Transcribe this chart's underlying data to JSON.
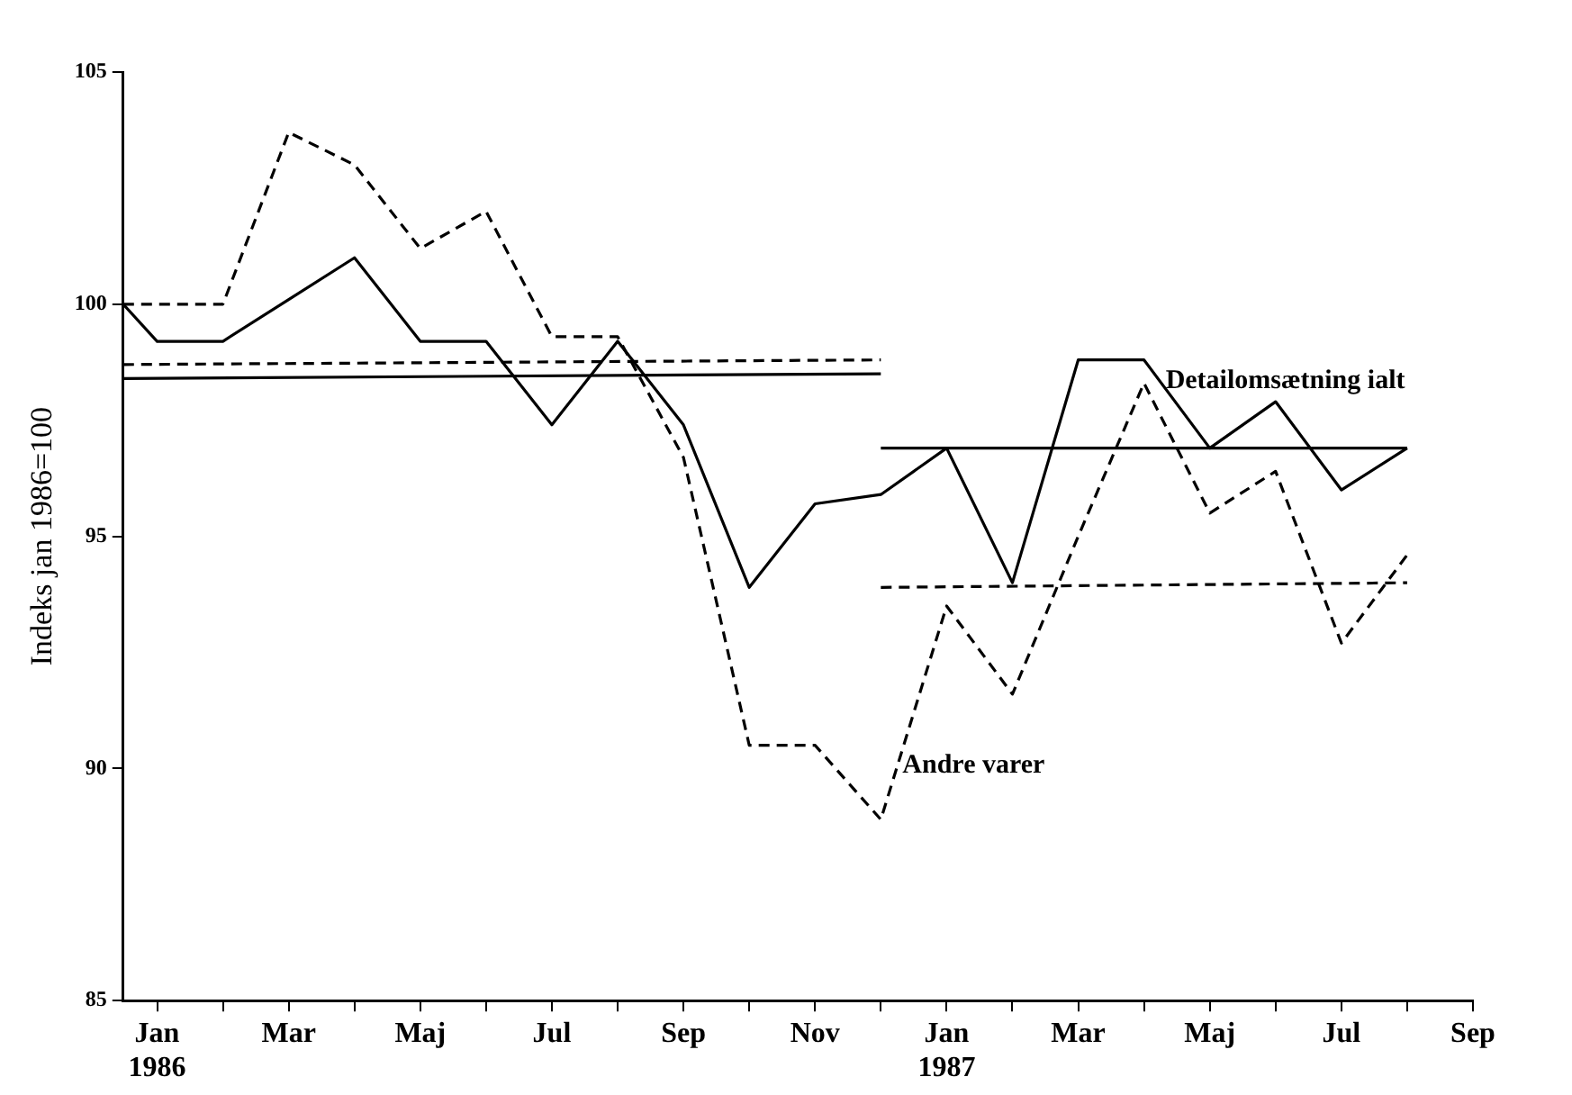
{
  "chart_data": {
    "type": "line",
    "ylabel": "Indeks jan 1986=100",
    "xlim": [
      "1985-12-16",
      "1987-09"
    ],
    "ylim": [
      85,
      105
    ],
    "yticks": [
      85,
      90,
      95,
      100,
      105
    ],
    "xticks": [
      {
        "value": "1986-01",
        "label": "Jan 1986"
      },
      {
        "value": "1986-02",
        "label": null
      },
      {
        "value": "1986-03",
        "label": "Mar"
      },
      {
        "value": "1986-04",
        "label": null
      },
      {
        "value": "1986-05",
        "label": "Maj"
      },
      {
        "value": "1986-06",
        "label": null
      },
      {
        "value": "1986-07",
        "label": "Jul"
      },
      {
        "value": "1986-08",
        "label": null
      },
      {
        "value": "1986-09",
        "label": "Sep"
      },
      {
        "value": "1986-10",
        "label": null
      },
      {
        "value": "1986-11",
        "label": "Nov"
      },
      {
        "value": "1986-12",
        "label": null
      },
      {
        "value": "1987-01",
        "label": "Jan 1987"
      },
      {
        "value": "1987-02",
        "label": null
      },
      {
        "value": "1987-03",
        "label": "Mar"
      },
      {
        "value": "1987-04",
        "label": null
      },
      {
        "value": "1987-05",
        "label": "Maj"
      },
      {
        "value": "1987-06",
        "label": null
      },
      {
        "value": "1987-07",
        "label": "Jul"
      },
      {
        "value": "1987-08",
        "label": null
      },
      {
        "value": "1987-09",
        "label": "Sep"
      }
    ],
    "x": [
      "1985-12-16",
      "1986-01",
      "1986-02",
      "1986-03",
      "1986-04",
      "1986-05",
      "1986-06",
      "1986-07",
      "1986-08",
      "1986-09",
      "1986-10",
      "1986-11",
      "1986-12",
      "1987-01",
      "1987-02",
      "1987-03",
      "1987-04",
      "1987-05",
      "1987-06",
      "1987-07",
      "1987-08"
    ],
    "grid": false,
    "legend": false,
    "marker": "none",
    "series": [
      {
        "name": "Detailomsætning ialt",
        "color": "#000000",
        "line_style": "solid",
        "values": [
          100,
          99.2,
          99.2,
          100.1,
          101,
          99.2,
          99.2,
          97.4,
          99.2,
          97.4,
          93.9,
          95.7,
          95.9,
          96.9,
          94,
          98.8,
          98.8,
          96.9,
          97.9,
          96,
          96.9
        ]
      },
      {
        "name": "Andre varer",
        "color": "#000000",
        "line_style": "dashed",
        "values": [
          100,
          100,
          100,
          103.7,
          103,
          101.2,
          102,
          99.3,
          99.3,
          96.7,
          90.5,
          90.5,
          88.9,
          93.5,
          91.6,
          95,
          98.3,
          95.5,
          96.4,
          92.7,
          94.6
        ]
      },
      {
        "color": "#000000",
        "line_style": "solid",
        "x": [
          "1985-12-16",
          "1986-12"
        ],
        "values": [
          98.4,
          98.5
        ]
      },
      {
        "color": "#000000",
        "line_style": "dashed",
        "x": [
          "1985-12-16",
          "1986-12"
        ],
        "values": [
          98.7,
          98.8
        ]
      },
      {
        "color": "#000000",
        "line_style": "solid",
        "x": [
          "1986-12",
          "1987-08"
        ],
        "values": [
          96.9,
          96.9
        ]
      },
      {
        "color": "#000000",
        "line_style": "dashed",
        "x": [
          "1986-12",
          "1987-08"
        ],
        "values": [
          93.9,
          94
        ]
      }
    ]
  }
}
